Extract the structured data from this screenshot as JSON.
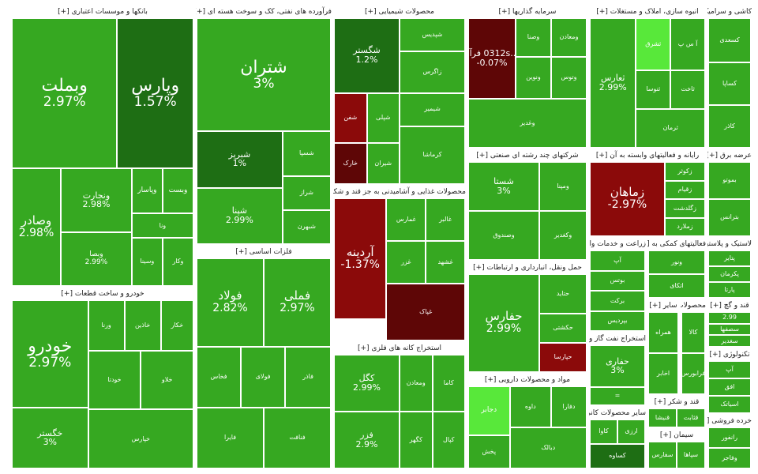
{
  "colors": {
    "up_strong": "#2f9f1d",
    "up_mid": "#36a821",
    "up_light": "#45c12b",
    "up_bright": "#58e83a",
    "up_dark": "#1e6e14",
    "down": "#8b0a0a",
    "down_dark": "#5e0606"
  },
  "chart_data": {
    "type": "treemap",
    "sectors": [
      {
        "id": "banks",
        "title": "بانکها و موسسات اعتباری [+]",
        "tiles": [
          {
            "name": "وبملت",
            "change": "2.97%",
            "color": "up_mid",
            "size": "xl"
          },
          {
            "name": "وپارس",
            "change": "1.57%",
            "color": "up_dark",
            "size": "xl"
          },
          {
            "name": "ونجارت",
            "change": "2.98%",
            "color": "up_mid",
            "size": "m"
          },
          {
            "name": "وصادر",
            "change": "2.98%",
            "color": "up_mid",
            "size": "l"
          },
          {
            "name": "وبصا",
            "change": "2.99%",
            "color": "up_mid",
            "size": "s"
          },
          {
            "name": "وپاسار",
            "change": "",
            "color": "up_mid",
            "size": "s"
          },
          {
            "name": "وبست",
            "change": "",
            "color": "up_mid",
            "size": "s"
          },
          {
            "name": "ونا",
            "change": "",
            "color": "up_mid",
            "size": "xs"
          },
          {
            "name": "وسینا",
            "change": "",
            "color": "up_mid",
            "size": "xs"
          },
          {
            "name": "وکار",
            "change": "",
            "color": "up_mid",
            "size": "xs"
          }
        ]
      },
      {
        "id": "auto",
        "title": "خودرو و ساخت قطعات [+]",
        "tiles": [
          {
            "name": "خودرو",
            "change": "2.97%",
            "color": "up_mid",
            "size": "xl"
          },
          {
            "name": "خگستر",
            "change": "3%",
            "color": "up_mid",
            "size": "m"
          },
          {
            "name": "ورنا",
            "change": "",
            "color": "up_mid",
            "size": "xs"
          },
          {
            "name": "خاذین",
            "change": "",
            "color": "up_mid",
            "size": "xs"
          },
          {
            "name": "خکار",
            "change": "",
            "color": "up_mid",
            "size": "xs"
          },
          {
            "name": "خودتا",
            "change": "",
            "color": "up_mid",
            "size": "xs"
          },
          {
            "name": "خلاو",
            "change": "",
            "color": "up_mid",
            "size": "xs"
          },
          {
            "name": "خپارس",
            "change": "",
            "color": "up_mid",
            "size": "xs"
          }
        ]
      },
      {
        "id": "oil",
        "title": "فرآورده های نفتی، کک و سوخت هسته ای [+]",
        "tiles": [
          {
            "name": "شتران",
            "change": "3%",
            "color": "up_mid",
            "size": "xl"
          },
          {
            "name": "شبریز",
            "change": "1%",
            "color": "up_dark",
            "size": "m"
          },
          {
            "name": "شپنا",
            "change": "2.99%",
            "color": "up_mid",
            "size": "m"
          },
          {
            "name": "شسپا",
            "change": "",
            "color": "up_mid",
            "size": "xs"
          },
          {
            "name": "شراز",
            "change": "",
            "color": "up_mid",
            "size": "xs"
          },
          {
            "name": "شبهرن",
            "change": "",
            "color": "up_mid",
            "size": "xs"
          }
        ]
      },
      {
        "id": "metals",
        "title": "فلزات اساسی [+]",
        "tiles": [
          {
            "name": "فولاد",
            "change": "2.82%",
            "color": "up_mid",
            "size": "l"
          },
          {
            "name": "فملی",
            "change": "2.97%",
            "color": "up_mid",
            "size": "l"
          },
          {
            "name": "فخاس",
            "change": "",
            "color": "up_mid",
            "size": "xs"
          },
          {
            "name": "فولای",
            "change": "",
            "color": "up_mid",
            "size": "xs"
          },
          {
            "name": "فاذر",
            "change": "",
            "color": "up_mid",
            "size": "xs"
          },
          {
            "name": "فایرا",
            "change": "",
            "color": "up_mid",
            "size": "xs"
          },
          {
            "name": "فنافت",
            "change": "",
            "color": "up_mid",
            "size": "xs"
          }
        ]
      },
      {
        "id": "chem",
        "title": "محصولات شیمیایی [+]",
        "tiles": [
          {
            "name": "شگستر",
            "change": "1.2%",
            "color": "up_dark",
            "size": "m"
          },
          {
            "name": "شپدیس",
            "change": "",
            "color": "up_mid",
            "size": "xs"
          },
          {
            "name": "زاگرس",
            "change": "",
            "color": "up_mid",
            "size": "xs"
          },
          {
            "name": "شفن",
            "change": "",
            "color": "down",
            "size": "xs"
          },
          {
            "name": "شپلی",
            "change": "",
            "color": "up_mid",
            "size": "xs"
          },
          {
            "name": "شیمیر",
            "change": "",
            "color": "up_mid",
            "size": "xs"
          },
          {
            "name": "خارک",
            "change": "",
            "color": "down_dark",
            "size": "xs"
          },
          {
            "name": "شیران",
            "change": "",
            "color": "up_mid",
            "size": "xs"
          },
          {
            "name": "کرماشا",
            "change": "",
            "color": "up_mid",
            "size": "xs"
          }
        ]
      },
      {
        "id": "food",
        "title": "محصولات غذایی و آشامیدنی به جز قند و شکر [+]",
        "tiles": [
          {
            "name": "آردینه",
            "change": "-1.37%",
            "color": "down",
            "size": "l"
          },
          {
            "name": "غمارس",
            "change": "",
            "color": "up_mid",
            "size": "xs"
          },
          {
            "name": "غالبر",
            "change": "",
            "color": "up_mid",
            "size": "xs"
          },
          {
            "name": "غزر",
            "change": "",
            "color": "up_mid",
            "size": "xs"
          },
          {
            "name": "غشهد",
            "change": "",
            "color": "up_mid",
            "size": "xs"
          },
          {
            "name": "غپاک",
            "change": "",
            "color": "down_dark",
            "size": "xs"
          }
        ]
      },
      {
        "id": "mining",
        "title": "استخراج کانه های فلزی [+]",
        "tiles": [
          {
            "name": "کگل",
            "change": "2.99%",
            "color": "up_mid",
            "size": "m"
          },
          {
            "name": "فزر",
            "change": "2.9%",
            "color": "up_mid",
            "size": "m"
          },
          {
            "name": "ومعادن",
            "change": "",
            "color": "up_mid",
            "size": "xs"
          },
          {
            "name": "کاما",
            "change": "",
            "color": "up_mid",
            "size": "xs"
          },
          {
            "name": "کگهر",
            "change": "",
            "color": "up_mid",
            "size": "xs"
          },
          {
            "name": "کپال",
            "change": "",
            "color": "up_mid",
            "size": "xs"
          }
        ]
      },
      {
        "id": "invest",
        "title": "سرمایه گذاریها [+]",
        "tiles": [
          {
            "name": "...0312s فرآو",
            "change": "-0.07%",
            "color": "down_dark",
            "size": "m"
          },
          {
            "name": "وصنا",
            "change": "",
            "color": "up_mid",
            "size": "xs"
          },
          {
            "name": "ومعادن",
            "change": "",
            "color": "up_mid",
            "size": "xs"
          },
          {
            "name": "ونوین",
            "change": "",
            "color": "up_mid",
            "size": "xs"
          },
          {
            "name": "وتوس",
            "change": "",
            "color": "up_mid",
            "size": "xs"
          },
          {
            "name": "وغدیر",
            "change": "",
            "color": "up_mid",
            "size": "xs"
          }
        ]
      },
      {
        "id": "multi",
        "title": "شرکتهای چند رشته ای صنعتی [+]",
        "tiles": [
          {
            "name": "شستا",
            "change": "3%",
            "color": "up_mid",
            "size": "m"
          },
          {
            "name": "وصندوق",
            "change": "",
            "color": "up_mid",
            "size": "xs"
          },
          {
            "name": "ومپنا",
            "change": "",
            "color": "up_mid",
            "size": "xs"
          },
          {
            "name": "وکغدیر",
            "change": "",
            "color": "up_mid",
            "size": "xs"
          }
        ]
      },
      {
        "id": "transport",
        "title": "حمل ونقل، انبارداری و ارتباطات [+]",
        "tiles": [
          {
            "name": "حفارس",
            "change": "2.99%",
            "color": "up_mid",
            "size": "l"
          },
          {
            "name": "حتاید",
            "change": "",
            "color": "up_mid",
            "size": "xs"
          },
          {
            "name": "حکشتی",
            "change": "",
            "color": "up_mid",
            "size": "xs"
          },
          {
            "name": "حپارسا",
            "change": "",
            "color": "down",
            "size": "xs"
          }
        ]
      },
      {
        "id": "pharma",
        "title": "مواد و محصولات دارویی [+]",
        "tiles": [
          {
            "name": "داوه",
            "change": "",
            "color": "up_mid",
            "size": "xs"
          },
          {
            "name": "دجابر",
            "change": "",
            "color": "up_bright",
            "size": "s"
          },
          {
            "name": "دفارا",
            "change": "",
            "color": "up_mid",
            "size": "xs"
          },
          {
            "name": "دبالک",
            "change": "",
            "color": "up_mid",
            "size": "xs"
          },
          {
            "name": "پخش",
            "change": "",
            "color": "up_mid",
            "size": "xs"
          }
        ]
      },
      {
        "id": "mass",
        "title": "انبوه سازی، املاک و مستغلات [+]",
        "tiles": [
          {
            "name": "ثعارس",
            "change": "2.99%",
            "color": "up_mid",
            "size": "m"
          },
          {
            "name": "ثشرق",
            "change": "",
            "color": "up_bright",
            "size": "xs"
          },
          {
            "name": "آ س پ",
            "change": "",
            "color": "up_mid",
            "size": "xs"
          },
          {
            "name": "ثنوسا",
            "change": "",
            "color": "up_mid",
            "size": "xs"
          },
          {
            "name": "ثاخت",
            "change": "",
            "color": "up_mid",
            "size": "xs"
          },
          {
            "name": "ثرمان",
            "change": "",
            "color": "up_mid",
            "size": "xs"
          }
        ]
      },
      {
        "id": "telecom",
        "title": "رایانه و فعالیتهای وابسته به آن [+]",
        "tiles": [
          {
            "name": "زماهان",
            "change": "-2.97%",
            "color": "down",
            "size": "l"
          },
          {
            "name": "زکوثر",
            "change": "",
            "color": "up_mid",
            "size": "xs"
          },
          {
            "name": "زقیام",
            "change": "",
            "color": "up_mid",
            "size": "xs"
          },
          {
            "name": "زگلدشت",
            "change": "",
            "color": "up_mid",
            "size": "xs"
          },
          {
            "name": "زملارد",
            "change": "",
            "color": "up_mid",
            "size": "xs"
          }
        ]
      },
      {
        "id": "water",
        "title": "زراعت و خدمات وابسته [+]",
        "tiles": [
          {
            "name": "آپ",
            "change": "",
            "color": "up_mid",
            "size": "xs"
          },
          {
            "name": "بوتس",
            "change": "",
            "color": "up_mid",
            "size": "xs"
          },
          {
            "name": "برکت",
            "change": "",
            "color": "up_mid",
            "size": "xs"
          },
          {
            "name": "بپردیس",
            "change": "",
            "color": "up_mid",
            "size": "xs"
          }
        ]
      },
      {
        "id": "oilex",
        "title": "استخراج نفت گاز و ... [+]",
        "tiles": [
          {
            "name": "حفاری",
            "change": "3%",
            "color": "up_mid",
            "size": "m"
          },
          {
            "name": "=",
            "change": "",
            "color": "up_mid",
            "size": "xs"
          }
        ]
      },
      {
        "id": "other_nonmet",
        "title": "سایر محصولات کانی [+]",
        "tiles": [
          {
            "name": "کاوا",
            "change": "",
            "color": "up_mid",
            "size": "xs"
          },
          {
            "name": "ارزی",
            "change": "",
            "color": "up_mid",
            "size": "xs"
          },
          {
            "name": "کساوه",
            "change": "",
            "color": "up_dark",
            "size": "xs"
          }
        ]
      },
      {
        "id": "misc1",
        "title": "فعالیتهای کمکی به [+]",
        "tiles": [
          {
            "name": "ونور",
            "change": "",
            "color": "up_mid",
            "size": "xs"
          },
          {
            "name": "اتکای",
            "change": "",
            "color": "up_mid",
            "size": "xs"
          }
        ]
      },
      {
        "id": "misc2",
        "title": "سایر [+]",
        "tiles": [
          {
            "name": "همراه",
            "change": "",
            "color": "up_mid",
            "size": "xs"
          },
          {
            "name": "اخابر",
            "change": "",
            "color": "up_mid",
            "size": "xs"
          }
        ]
      },
      {
        "id": "misc3",
        "title": "محصولات [+]",
        "tiles": [
          {
            "name": "کالا",
            "change": "",
            "color": "up_mid",
            "size": "xs"
          },
          {
            "name": "فرابورس",
            "change": "",
            "color": "up_mid",
            "size": "xs"
          }
        ]
      },
      {
        "id": "misc4",
        "title": "قند و شکر [+]",
        "tiles": [
          {
            "name": "قنیشا",
            "change": "",
            "color": "up_mid",
            "size": "xs"
          },
          {
            "name": "قثابت",
            "change": "",
            "color": "up_mid",
            "size": "xs"
          }
        ]
      },
      {
        "id": "misc5",
        "title": "سیمان [+]",
        "tiles": [
          {
            "name": "سفارس",
            "change": "",
            "color": "up_mid",
            "size": "xs"
          },
          {
            "name": "سپاها",
            "change": "",
            "color": "up_mid",
            "size": "xs"
          }
        ]
      },
      {
        "id": "misc6",
        "title": "کاشی و سرامیک [+]",
        "tiles": [
          {
            "name": "کسعدی",
            "change": "",
            "color": "up_mid",
            "size": "xs"
          },
          {
            "name": "کساپا",
            "change": "",
            "color": "up_mid",
            "size": "xs"
          },
          {
            "name": "کاذر",
            "change": "",
            "color": "up_mid",
            "size": "xs"
          }
        ]
      },
      {
        "id": "misc7",
        "title": "عرضه برق [+]",
        "tiles": [
          {
            "name": "بموتو",
            "change": "",
            "color": "up_mid",
            "size": "xs"
          },
          {
            "name": "بترانس",
            "change": "",
            "color": "up_mid",
            "size": "xs"
          }
        ]
      },
      {
        "id": "misc8",
        "title": "لاستیک و پلاستیک [+]",
        "tiles": [
          {
            "name": "پتایر",
            "change": "",
            "color": "up_mid",
            "size": "xs"
          },
          {
            "name": "پکرمان",
            "change": "",
            "color": "up_mid",
            "size": "xs"
          },
          {
            "name": "پارتا",
            "change": "",
            "color": "up_mid",
            "size": "xs"
          }
        ]
      },
      {
        "id": "misc9",
        "title": "قند و گچ [+]",
        "tiles": [
          {
            "name": "2.99",
            "change": "",
            "color": "up_mid",
            "size": "xs"
          },
          {
            "name": "سصفها",
            "change": "",
            "color": "up_mid",
            "size": "xs"
          },
          {
            "name": "سغدیر",
            "change": "",
            "color": "up_mid",
            "size": "xs"
          }
        ]
      },
      {
        "id": "misc10",
        "title": "تکنولوژی [+]",
        "tiles": [
          {
            "name": "آپ",
            "change": "",
            "color": "up_mid",
            "size": "xs"
          },
          {
            "name": "افق",
            "change": "",
            "color": "up_mid",
            "size": "xs"
          },
          {
            "name": "اسیاتک",
            "change": "",
            "color": "up_mid",
            "size": "xs"
          }
        ]
      },
      {
        "id": "misc11",
        "title": "خرده فروشی [+]",
        "tiles": [
          {
            "name": "رانفور",
            "change": "",
            "color": "up_mid",
            "size": "xs"
          },
          {
            "name": "وفاجر",
            "change": "",
            "color": "up_mid",
            "size": "xs"
          }
        ]
      }
    ]
  }
}
